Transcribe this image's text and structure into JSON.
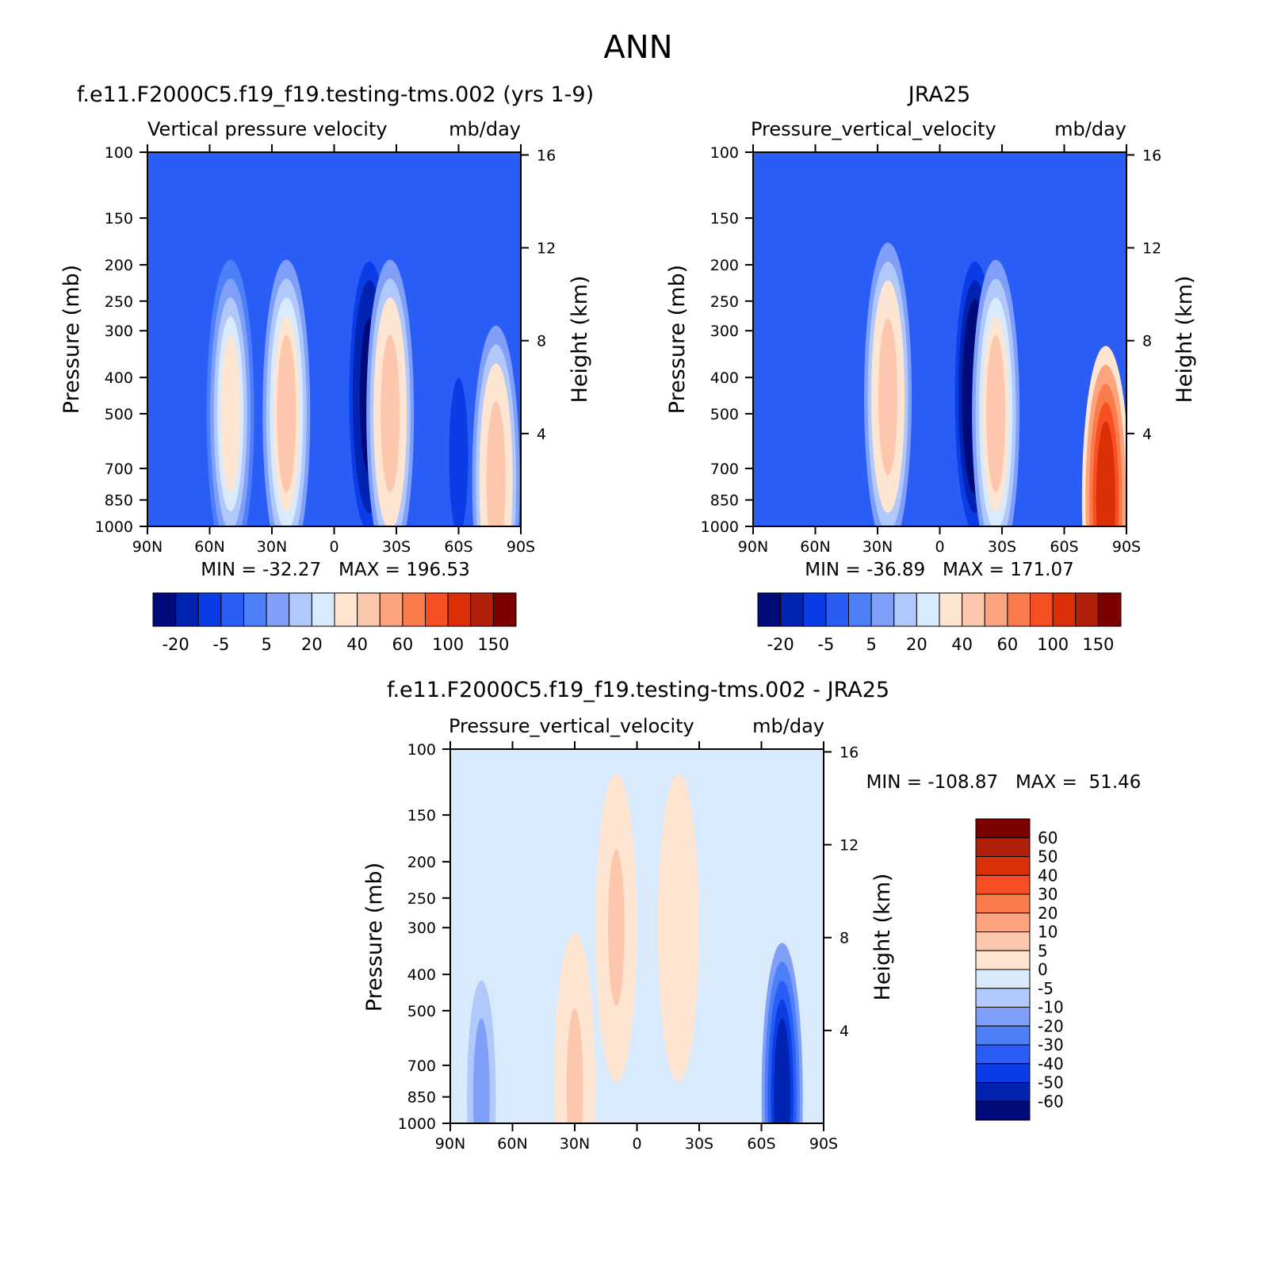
{
  "figure_title": "ANN",
  "colors": {
    "main_scale": [
      "#000a7a",
      "#0023b2",
      "#0a3de6",
      "#2a5df6",
      "#4d7ff8",
      "#7f9ff9",
      "#b1c8fb",
      "#d9eafd",
      "#fde5d2",
      "#fcc7ad",
      "#fba47d",
      "#fa7c4d",
      "#f74e23",
      "#db2f08",
      "#b21f0a",
      "#7d0000"
    ],
    "diff_scale": [
      "#000a7a",
      "#0023b2",
      "#0a3de6",
      "#2a5df6",
      "#4d7ff8",
      "#7f9ff9",
      "#b1c8fb",
      "#d9eafd",
      "#fde5d2",
      "#fcc7ad",
      "#fba47d",
      "#fa7c4d",
      "#f74e23",
      "#db2f08",
      "#b21f0a",
      "#7d0000"
    ]
  },
  "chart_data": [
    {
      "type": "heatmap",
      "title": "f.e11.F2000C5.f19_f19.testing-tms.002 (yrs 1-9)",
      "subtitle_left": "Vertical pressure velocity",
      "subtitle_right": "mb/day",
      "ylabel": "Pressure (mb)",
      "ylabel_right": "Height (km)",
      "x_ticks": [
        "90N",
        "60N",
        "30N",
        "0",
        "30S",
        "60S",
        "90S"
      ],
      "x_range": [
        90,
        -90
      ],
      "y_ticks": [
        "100",
        "150",
        "200",
        "250",
        "300",
        "400",
        "500",
        "700",
        "850",
        "1000"
      ],
      "y_range": [
        100,
        1000
      ],
      "y_scale": "log",
      "y_right_ticks": [
        "16",
        "12",
        "8",
        "4"
      ],
      "stats": "MIN = -32.27   MAX = 196.53",
      "min": -32.27,
      "max": 196.53,
      "colorbar_labels": [
        "-20",
        "-5",
        "5",
        "20",
        "40",
        "60",
        "100",
        "150"
      ],
      "features": [
        {
          "lat": -17,
          "plev": 450,
          "value": -28
        },
        {
          "lat": 62,
          "plev": 600,
          "value": -14
        },
        {
          "lat": 50,
          "plev": 500,
          "value": 12
        },
        {
          "lat": 23,
          "plev": 500,
          "value": 22
        },
        {
          "lat": -27,
          "plev": 500,
          "value": 25
        },
        {
          "lat": -60,
          "plev": 650,
          "value": -16
        },
        {
          "lat": -78,
          "plev": 750,
          "value": 25
        }
      ]
    },
    {
      "type": "heatmap",
      "title": "JRA25",
      "subtitle_left": "Pressure_vertical_velocity",
      "subtitle_right": "mb/day",
      "ylabel": "Pressure (mb)",
      "ylabel_right": "Height (km)",
      "x_ticks": [
        "90N",
        "60N",
        "30N",
        "0",
        "30S",
        "60S",
        "90S"
      ],
      "x_range": [
        90,
        -90
      ],
      "y_ticks": [
        "100",
        "150",
        "200",
        "250",
        "300",
        "400",
        "500",
        "700",
        "850",
        "1000"
      ],
      "y_range": [
        100,
        1000
      ],
      "y_scale": "log",
      "y_right_ticks": [
        "16",
        "12",
        "8",
        "4"
      ],
      "stats": "MIN = -36.89   MAX = 171.07",
      "min": -36.89,
      "max": 171.07,
      "colorbar_labels": [
        "-20",
        "-5",
        "5",
        "20",
        "40",
        "60",
        "100",
        "150"
      ],
      "features": [
        {
          "lat": -17,
          "plev": 450,
          "value": -30
        },
        {
          "lat": 62,
          "plev": 600,
          "value": -12
        },
        {
          "lat": 25,
          "plev": 450,
          "value": 24
        },
        {
          "lat": -27,
          "plev": 500,
          "value": 20
        },
        {
          "lat": -62,
          "plev": 700,
          "value": -15
        },
        {
          "lat": -80,
          "plev": 850,
          "value": 95
        }
      ]
    },
    {
      "type": "heatmap",
      "title": "f.e11.F2000C5.f19_f19.testing-tms.002 - JRA25",
      "subtitle_left": "Pressure_vertical_velocity",
      "subtitle_right": "mb/day",
      "ylabel": "Pressure (mb)",
      "ylabel_right": "Height (km)",
      "x_ticks": [
        "90N",
        "60N",
        "30N",
        "0",
        "30S",
        "60S",
        "90S"
      ],
      "x_range": [
        90,
        -90
      ],
      "y_ticks": [
        "100",
        "150",
        "200",
        "250",
        "300",
        "400",
        "500",
        "700",
        "850",
        "1000"
      ],
      "y_range": [
        100,
        1000
      ],
      "y_scale": "log",
      "y_right_ticks": [
        "16",
        "12",
        "8",
        "4"
      ],
      "stats": "MIN = -108.87   MAX =  51.46",
      "min": -108.87,
      "max": 51.46,
      "colorbar_labels": [
        "60",
        "50",
        "40",
        "30",
        "20",
        "10",
        "5",
        "0",
        "-5",
        "-10",
        "-20",
        "-30",
        "-40",
        "-50",
        "-60"
      ],
      "features": [
        {
          "lat": -70,
          "plev": 850,
          "value": -55
        },
        {
          "lat": 75,
          "plev": 850,
          "value": -12
        },
        {
          "lat": 30,
          "plev": 800,
          "value": 6
        },
        {
          "lat": 10,
          "plev": 300,
          "value": 6
        },
        {
          "lat": -20,
          "plev": 300,
          "value": 3
        }
      ]
    }
  ]
}
